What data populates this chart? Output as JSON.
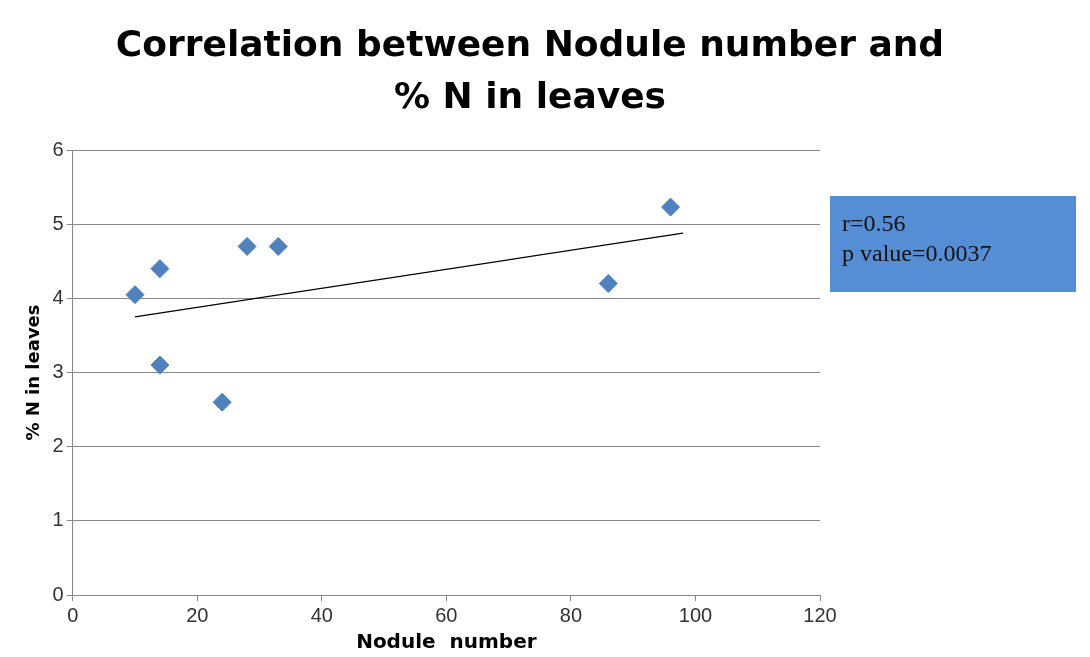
{
  "chart_data": {
    "type": "scatter",
    "title": "Correlation between Nodule number and % N in leaves",
    "xlabel": "Nodule  number",
    "ylabel": "% N in leaves",
    "series": [
      {
        "type": "scatter",
        "color": "#4f81bd",
        "marker": "diamond",
        "x": [
          10,
          14,
          14,
          24,
          28,
          33,
          86,
          96
        ],
        "values": [
          4.05,
          4.4,
          3.1,
          2.6,
          4.7,
          4.7,
          4.2,
          5.23
        ]
      },
      {
        "type": "line",
        "color": "#000000",
        "marker": "none",
        "x": [
          10,
          98
        ],
        "values": [
          3.75,
          4.88
        ]
      }
    ],
    "xlim": [
      0,
      120
    ],
    "xticks": [
      0,
      20,
      40,
      60,
      80,
      100,
      120
    ],
    "ylim": [
      0,
      6
    ],
    "yticks": [
      0,
      1,
      2,
      3,
      4,
      5,
      6
    ],
    "grid": "y",
    "legend": false,
    "annotations": [
      "r=0.56",
      "p value=0.0037"
    ]
  }
}
